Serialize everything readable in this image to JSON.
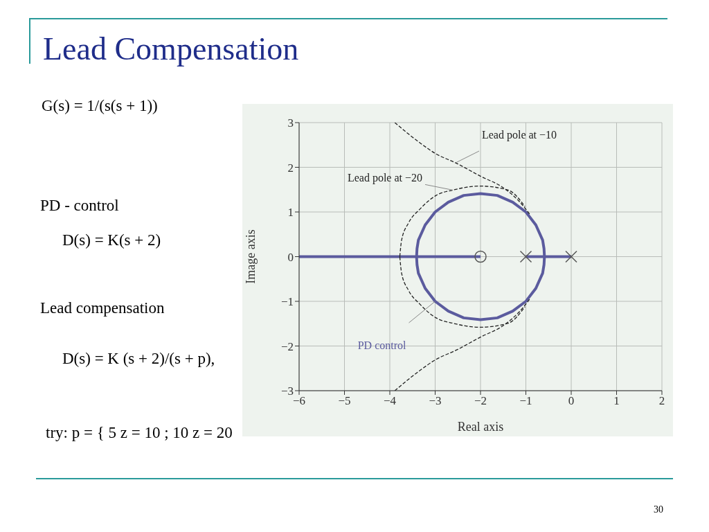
{
  "chart_data": {
    "type": "line",
    "title": "Lead Compensation",
    "xlabel": "Real axis",
    "ylabel": "Image axis",
    "annotations": [
      "G(s) = 1/(s(s + 1))",
      "PD - control",
      "D(s) = K(s + 2)",
      "Lead compensation",
      "D(s) = K (s + 2)/(s + p),",
      "try:  p = { 5 z = 10 ; 10 z = 20",
      "30"
    ],
    "series": [
      {
        "color": "#5b5b9e",
        "line_style": "solid",
        "x": [
          -6,
          -3.41,
          -3.4,
          -3.37,
          -3.22,
          -3.0,
          -2.71,
          -2.37,
          -2,
          -1.63,
          -1.29,
          -1.0,
          -0.78,
          -0.63,
          -0.6,
          -0.59,
          0
        ],
        "values": [
          0,
          0,
          0.18,
          0.37,
          0.71,
          1.0,
          1.22,
          1.37,
          1.41,
          1.37,
          1.22,
          1.0,
          0.71,
          0.37,
          0.18,
          0,
          0
        ]
      },
      {
        "name": "PD control",
        "color": "#5b5b9e",
        "line_style": "solid",
        "x": [
          -3.41,
          -3.4,
          -3.37,
          -3.22,
          -3.0,
          -2.71,
          -2.37,
          -2,
          -1.63,
          -1.29,
          -1.0,
          -0.78,
          -0.63,
          -0.6,
          -0.59
        ],
        "values": [
          0,
          -0.18,
          -0.37,
          -0.71,
          -1.0,
          -1.22,
          -1.37,
          -1.41,
          -1.37,
          -1.22,
          -1.0,
          -0.71,
          -0.37,
          -0.18,
          0
        ]
      },
      {
        "color": "#5b5b9e",
        "line_style": "solid",
        "x": [
          -3.41,
          -2
        ],
        "values": [
          0,
          0
        ]
      },
      {
        "color": "#5b5b9e",
        "line_style": "solid",
        "x": [
          -1,
          -0.59
        ],
        "values": [
          0,
          0
        ]
      },
      {
        "name": "Lead pole at −10",
        "color": "#222222",
        "line_style": "dashed",
        "x": [
          -3.89,
          -3.34,
          -2.98,
          -2.55,
          -2.0,
          -1.51,
          -1.15,
          -0.9
        ],
        "values": [
          3,
          2.55,
          2.3,
          2.1,
          1.8,
          1.55,
          1.24,
          0.93
        ]
      },
      {
        "color": "#222222",
        "line_style": "dashed",
        "x": [
          -3.89,
          -3.34,
          -2.98,
          -2.55,
          -2.0,
          -1.51,
          -1.15,
          -0.9
        ],
        "values": [
          -3,
          -2.55,
          -2.3,
          -2.1,
          -1.8,
          -1.55,
          -1.24,
          -0.93
        ]
      },
      {
        "name": "Lead pole at −20",
        "color": "#222222",
        "line_style": "dashed",
        "x": [
          -3.78,
          -3.74,
          -3.59,
          -3.34,
          -2.98,
          -2.61,
          -2,
          -1.39,
          -1.02
        ],
        "values": [
          0,
          0.37,
          0.75,
          1.06,
          1.37,
          1.49,
          1.58,
          1.49,
          1.12
        ]
      },
      {
        "color": "#222222",
        "line_style": "dashed",
        "x": [
          -3.78,
          -3.74,
          -3.59,
          -3.34,
          -2.98,
          -2.61,
          -2,
          -1.39,
          -1.02
        ],
        "values": [
          0,
          -0.37,
          -0.75,
          -1.06,
          -1.37,
          -1.49,
          -1.58,
          -1.49,
          -1.12
        ]
      },
      {
        "type": "scatter",
        "color": "#555555",
        "marker": "cross",
        "x": [
          -1,
          0
        ],
        "values": [
          0,
          0
        ]
      },
      {
        "type": "scatter",
        "color": "#555555",
        "marker": "circle",
        "x": [
          -2
        ],
        "values": [
          0
        ]
      }
    ],
    "xlim": [
      -6,
      2
    ],
    "xticks": [
      -6,
      -5,
      -4,
      -3,
      -2,
      -1,
      0,
      1,
      2
    ],
    "ylim": [
      -3,
      3
    ],
    "yticks": [
      -3,
      -2,
      -1,
      0,
      1,
      2,
      3
    ],
    "grid": true,
    "legend": false
  }
}
